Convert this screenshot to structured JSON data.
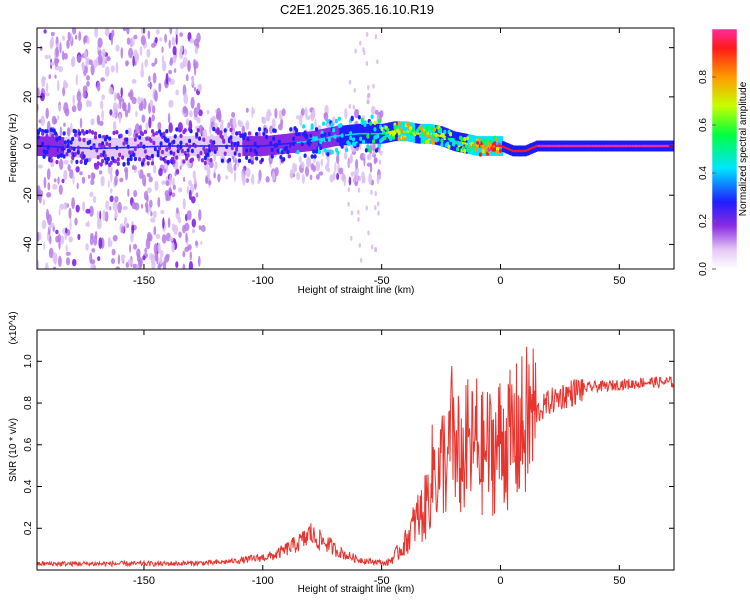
{
  "title": "C2E1.2025.365.16.10.R19",
  "chart_data": [
    {
      "type": "heatmap",
      "name": "spectrogram",
      "xlabel": "Height of straight line (km)",
      "ylabel": "Frequency (Hz)",
      "xlim": [
        -195,
        73
      ],
      "ylim": [
        -50,
        48
      ],
      "xticks": [
        -150,
        -100,
        -50,
        0,
        50
      ],
      "xtick_labels": [
        "-150",
        "-100",
        "-50",
        "0",
        "50"
      ],
      "yticks": [
        -40,
        -20,
        0,
        20,
        40
      ],
      "ytick_labels": [
        "-40",
        "-20",
        "0",
        "20",
        "40"
      ],
      "colorbar": {
        "label": "Normalized spectral amplitude",
        "range": [
          0,
          1
        ],
        "ticks": [
          0.0,
          0.2,
          0.4,
          0.6,
          0.8
        ],
        "tick_labels": [
          "0.0",
          "0.2",
          "0.4",
          "0.6",
          "0.8"
        ]
      },
      "carrier_track": {
        "x": [
          -195,
          -170,
          -140,
          -120,
          -100,
          -80,
          -70,
          -60,
          -50,
          -45,
          -40,
          -35,
          -30,
          -25,
          -20,
          -15,
          -10,
          -5,
          0,
          5,
          10,
          15,
          20,
          30,
          50,
          73
        ],
        "freq": [
          0,
          -1,
          0,
          0,
          0,
          2,
          4,
          5,
          5,
          6,
          6,
          5,
          5,
          4,
          2,
          1,
          0,
          0,
          0,
          -2,
          -2,
          0,
          0,
          0,
          0,
          0
        ],
        "amplitude": [
          0.35,
          0.3,
          0.3,
          0.3,
          0.35,
          0.45,
          0.5,
          0.55,
          0.65,
          0.75,
          0.8,
          0.75,
          0.8,
          0.7,
          0.6,
          0.75,
          0.85,
          0.9,
          0.95,
          0.95,
          0.95,
          1.0,
          1.0,
          1.0,
          1.0,
          1.0
        ]
      },
      "noise_regions": [
        {
          "x_range": [
            -195,
            -125
          ],
          "freq_range": [
            -50,
            48
          ],
          "amplitude": 0.2
        },
        {
          "x_range": [
            -125,
            -50
          ],
          "freq_range": [
            -15,
            15
          ],
          "amplitude": 0.15
        }
      ]
    },
    {
      "type": "line",
      "name": "snr",
      "xlabel": "Height of straight line (km)",
      "ylabel": "SNR (10 * v/v)",
      "y_scale_label": "(x10^4)",
      "color": "#e8342f",
      "xlim": [
        -195,
        73
      ],
      "ylim": [
        0,
        1.15
      ],
      "xticks": [
        -150,
        -100,
        -50,
        0,
        50
      ],
      "xtick_labels": [
        "-150",
        "-100",
        "-50",
        "0",
        "50"
      ],
      "yticks": [
        0.2,
        0.4,
        0.6,
        0.8,
        1.0
      ],
      "ytick_labels": [
        "0.2",
        "0.4",
        "0.6",
        "0.8",
        "1.0"
      ],
      "x": [
        -195,
        -180,
        -160,
        -140,
        -120,
        -110,
        -100,
        -95,
        -90,
        -85,
        -82,
        -80,
        -78,
        -75,
        -72,
        -70,
        -68,
        -65,
        -62,
        -60,
        -57,
        -55,
        -52,
        -50,
        -48,
        -45,
        -42,
        -40,
        -38,
        -35,
        -32,
        -30,
        -28,
        -26,
        -24,
        -22,
        -20,
        -18,
        -16,
        -14,
        -12,
        -10,
        -8,
        -6,
        -4,
        -2,
        0,
        2,
        4,
        6,
        8,
        10,
        12,
        14,
        16,
        18,
        20,
        25,
        30,
        35,
        40,
        45,
        50,
        55,
        60,
        65,
        70,
        73
      ],
      "y": [
        0.03,
        0.03,
        0.03,
        0.03,
        0.035,
        0.045,
        0.06,
        0.07,
        0.1,
        0.13,
        0.15,
        0.18,
        0.15,
        0.14,
        0.12,
        0.1,
        0.09,
        0.07,
        0.06,
        0.05,
        0.045,
        0.04,
        0.04,
        0.035,
        0.03,
        0.06,
        0.1,
        0.13,
        0.18,
        0.25,
        0.28,
        0.38,
        0.5,
        0.45,
        0.55,
        0.48,
        0.7,
        0.55,
        0.52,
        0.6,
        0.58,
        0.62,
        0.55,
        0.58,
        0.57,
        0.58,
        0.62,
        0.62,
        0.62,
        0.64,
        0.66,
        0.68,
        0.72,
        0.74,
        0.76,
        0.78,
        0.8,
        0.83,
        0.85,
        0.87,
        0.88,
        0.88,
        0.89,
        0.89,
        0.9,
        0.9,
        0.9,
        0.9
      ]
    }
  ]
}
